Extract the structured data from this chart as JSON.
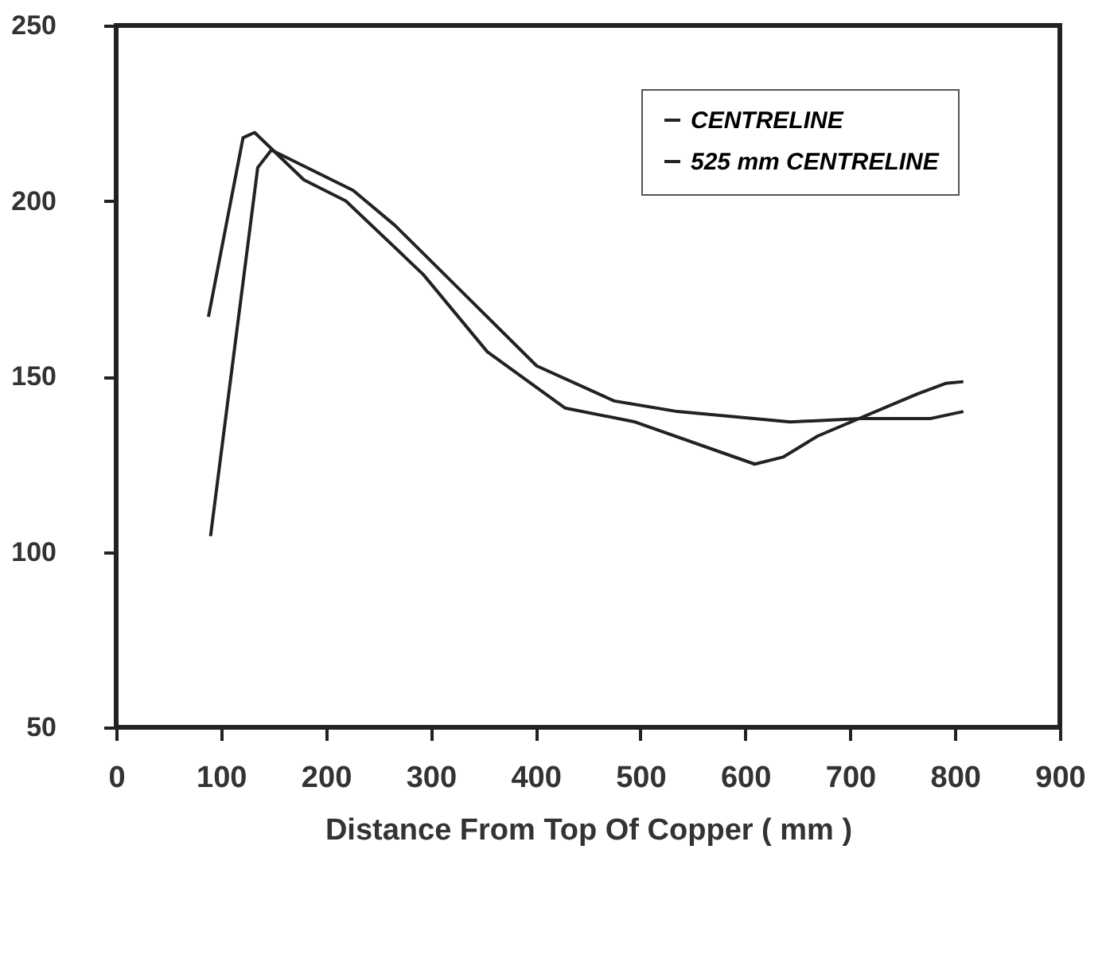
{
  "chart_data": {
    "type": "line",
    "xlabel": "Distance From Top Of Copper ( mm )",
    "series": [
      {
        "name": "CENTRELINE",
        "color": "#222222",
        "x": [
          88,
          121,
          132,
          179,
          219,
          293,
          354,
          428,
          495,
          609,
          636,
          669,
          764,
          791,
          808
        ],
        "values": [
          167,
          218,
          219.5,
          206,
          200,
          179,
          157,
          141,
          137,
          125,
          127,
          133,
          145,
          148,
          148.5
        ]
      },
      {
        "name": "525 mm CENTRELINE",
        "color": "#222222",
        "x": [
          90,
          135,
          148,
          226,
          266,
          320,
          401,
          475,
          535,
          643,
          710,
          777,
          808
        ],
        "values": [
          104.5,
          209.5,
          214.5,
          203,
          193,
          177,
          153,
          143,
          140,
          137,
          138,
          138,
          140
        ]
      }
    ],
    "xlim": [
      0,
      900
    ],
    "xticks": [
      0,
      100,
      200,
      300,
      400,
      500,
      600,
      700,
      800,
      900
    ],
    "ylim": [
      50,
      250
    ],
    "yticks": [
      50,
      100,
      150,
      200,
      250
    ],
    "grid": false,
    "legend": "top right",
    "marker": "none",
    "line_style": "solid"
  }
}
